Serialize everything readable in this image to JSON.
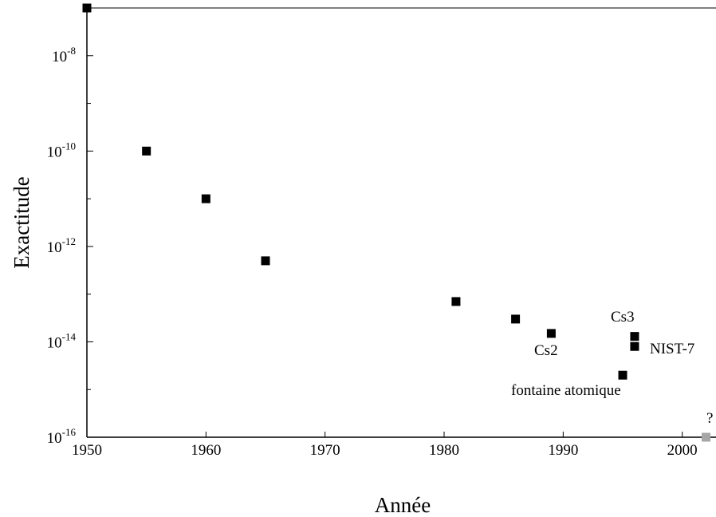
{
  "chart_data": {
    "type": "scatter",
    "xlabel": "Année",
    "ylabel": "Exactitude",
    "x_ticks": [
      "1950",
      "1960",
      "1970",
      "1980",
      "1990",
      "2000"
    ],
    "y_ticks": [
      {
        "base": "10",
        "exp": "-16"
      },
      {
        "base": "10",
        "exp": "-14"
      },
      {
        "base": "10",
        "exp": "-12"
      },
      {
        "base": "10",
        "exp": "-10"
      },
      {
        "base": "10",
        "exp": "-8"
      }
    ],
    "xlim": [
      1950,
      2002.5
    ],
    "ylim": [
      1e-16,
      1e-07
    ],
    "yscale": "log",
    "grid": false,
    "colors": {
      "points": "#000000",
      "future_point": "#a6a6a6"
    },
    "points": [
      {
        "x": 1950,
        "y": 1e-07
      },
      {
        "x": 1955,
        "y": 1e-10
      },
      {
        "x": 1960,
        "y": 1e-11
      },
      {
        "x": 1965,
        "y": 5e-13
      },
      {
        "x": 1981,
        "y": 7e-14
      },
      {
        "x": 1986,
        "y": 3e-14
      },
      {
        "x": 1989,
        "y": 1.5e-14
      },
      {
        "x": 1995,
        "y": 2e-15
      },
      {
        "x": 1996,
        "y": 1.3e-14
      },
      {
        "x": 1996,
        "y": 8e-15
      }
    ],
    "future_points": [
      {
        "x": 2002,
        "y": 1e-16
      }
    ],
    "annotations": {
      "cs2": "Cs2",
      "cs3": "Cs3",
      "nist7": "NIST-7",
      "fontaine": "fontaine atomique",
      "question": "?"
    }
  }
}
